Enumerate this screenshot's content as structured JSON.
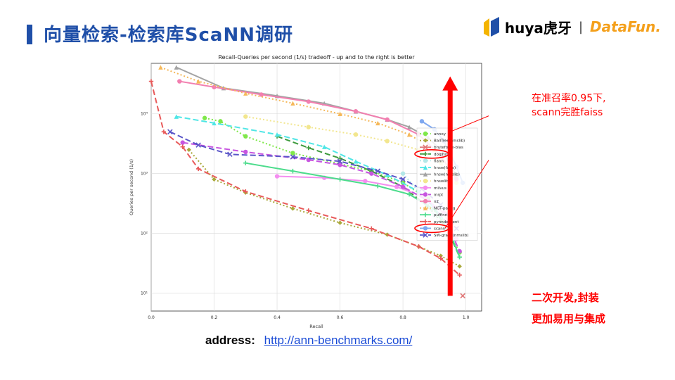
{
  "slide": {
    "title": "向量检索-检索库ScaNN调研",
    "logo_huya": "huya虎牙",
    "logo_sep": "|",
    "logo_datafun": "DataFun.",
    "note1_line1": "在准召率0.95下,",
    "note1_line2": "scann完胜faiss",
    "note2_line1": "二次开发,封装",
    "note2_line2": "更加易用与集成",
    "address_label": "address:",
    "address_url": "http://ann-benchmarks.com/",
    "accent_color": "#ff0000",
    "title_color": "#1f4fa8"
  },
  "chart_data": {
    "type": "line",
    "title": "Recall-Queries per second (1/s) tradeoff - up and to the right is better",
    "xlabel": "Recall",
    "ylabel": "Queries per second (1/s)",
    "xscale": "linear",
    "yscale": "log",
    "xlim": [
      0.0,
      1.05
    ],
    "ylim": [
      5,
      70000
    ],
    "xticks": [
      "0.0",
      "0.2",
      "0.4",
      "0.6",
      "0.8",
      "1.0"
    ],
    "yticks": [
      "10¹",
      "10²",
      "10³",
      "10⁴"
    ],
    "grid": true,
    "legend_position": "center-right",
    "series": [
      {
        "name": "annoy",
        "color": "#7fe84a",
        "dash": "2,3",
        "marker": "circle",
        "points": [
          [
            0.17,
            8500
          ],
          [
            0.22,
            7500
          ],
          [
            0.3,
            4200
          ],
          [
            0.45,
            2200
          ],
          [
            0.6,
            1450
          ],
          [
            0.7,
            1100
          ],
          [
            0.8,
            700
          ],
          [
            0.88,
            380
          ],
          [
            0.93,
            150
          ],
          [
            0.98,
            48
          ]
        ]
      },
      {
        "name": "BallTree(nmslib)",
        "color": "#a9a83a",
        "dash": "2,3",
        "marker": "diamond",
        "points": [
          [
            0.12,
            2500
          ],
          [
            0.2,
            800
          ],
          [
            0.3,
            480
          ],
          [
            0.45,
            260
          ],
          [
            0.6,
            150
          ],
          [
            0.75,
            95
          ],
          [
            0.85,
            60
          ],
          [
            0.92,
            42
          ],
          [
            0.98,
            28
          ]
        ]
      },
      {
        "name": "bruteforce-blas",
        "color": "#e07878",
        "dash": "none",
        "marker": "x",
        "points": [
          [
            0.99,
            9
          ]
        ]
      },
      {
        "name": "dolphinn",
        "color": "#3e9a3e",
        "dash": "8,4",
        "marker": "plus",
        "points": [
          [
            0.4,
            4200
          ],
          [
            0.5,
            2700
          ],
          [
            0.6,
            1800
          ],
          [
            0.7,
            1100
          ],
          [
            0.8,
            600
          ],
          [
            0.88,
            280
          ],
          [
            0.94,
            120
          ],
          [
            0.98,
            40
          ]
        ]
      },
      {
        "name": "flann",
        "color": "#b3e8e8",
        "dash": "2,3",
        "marker": "circle",
        "points": [
          [
            0.8,
            1000
          ],
          [
            0.85,
            500
          ],
          [
            0.9,
            200
          ],
          [
            0.95,
            70
          ]
        ]
      },
      {
        "name": "hnsw(faiss)",
        "color": "#4fe6e6",
        "dash": "8,4",
        "marker": "triangle",
        "points": [
          [
            0.08,
            9000
          ],
          [
            0.2,
            7000
          ],
          [
            0.4,
            4500
          ],
          [
            0.55,
            2800
          ],
          [
            0.65,
            1600
          ],
          [
            0.75,
            950
          ],
          [
            0.85,
            500
          ],
          [
            0.92,
            200
          ],
          [
            0.96,
            80
          ]
        ]
      },
      {
        "name": "hnsw(nmslib)",
        "color": "#a3a3a3",
        "dash": "none",
        "marker": "triangle",
        "points": [
          [
            0.08,
            60000
          ],
          [
            0.23,
            27000
          ],
          [
            0.4,
            20000
          ],
          [
            0.55,
            15000
          ],
          [
            0.65,
            11000
          ],
          [
            0.75,
            8000
          ],
          [
            0.82,
            6000
          ],
          [
            0.88,
            4000
          ],
          [
            0.93,
            2200
          ],
          [
            0.97,
            900
          ]
        ]
      },
      {
        "name": "hnswlib",
        "color": "#f2e68e",
        "dash": "2,3",
        "marker": "circle",
        "points": [
          [
            0.3,
            9000
          ],
          [
            0.5,
            6000
          ],
          [
            0.65,
            4500
          ],
          [
            0.75,
            3500
          ],
          [
            0.85,
            2500
          ],
          [
            0.92,
            1500
          ],
          [
            0.97,
            700
          ]
        ]
      },
      {
        "name": "milvus",
        "color": "#f48ef0",
        "dash": "none",
        "marker": "circle",
        "points": [
          [
            0.4,
            900
          ],
          [
            0.55,
            850
          ],
          [
            0.68,
            750
          ],
          [
            0.78,
            600
          ],
          [
            0.86,
            420
          ],
          [
            0.93,
            220
          ],
          [
            0.97,
            80
          ]
        ]
      },
      {
        "name": "mrpt",
        "color": "#c755e0",
        "dash": "8,4",
        "marker": "circle",
        "points": [
          [
            0.1,
            3300
          ],
          [
            0.3,
            2300
          ],
          [
            0.5,
            1700
          ],
          [
            0.6,
            1400
          ],
          [
            0.7,
            1000
          ],
          [
            0.8,
            600
          ],
          [
            0.88,
            350
          ],
          [
            0.94,
            150
          ],
          [
            0.98,
            50
          ]
        ]
      },
      {
        "name": "n2",
        "color": "#f27fb0",
        "dash": "none",
        "marker": "circle",
        "points": [
          [
            0.09,
            35000
          ],
          [
            0.2,
            28000
          ],
          [
            0.35,
            21000
          ],
          [
            0.5,
            16000
          ],
          [
            0.65,
            11000
          ],
          [
            0.75,
            8000
          ],
          [
            0.85,
            4500
          ],
          [
            0.92,
            2000
          ],
          [
            0.97,
            800
          ]
        ]
      },
      {
        "name": "NGT-panng",
        "color": "#f5b85a",
        "dash": "2,3",
        "marker": "triangle",
        "points": [
          [
            0.03,
            60000
          ],
          [
            0.15,
            35000
          ],
          [
            0.3,
            22000
          ],
          [
            0.45,
            15000
          ],
          [
            0.6,
            10000
          ],
          [
            0.72,
            7000
          ],
          [
            0.82,
            4500
          ],
          [
            0.9,
            2500
          ],
          [
            0.96,
            1000
          ]
        ]
      },
      {
        "name": "puffinn",
        "color": "#4cdc8c",
        "dash": "none",
        "marker": "plus",
        "points": [
          [
            0.3,
            1500
          ],
          [
            0.45,
            1100
          ],
          [
            0.6,
            800
          ],
          [
            0.72,
            620
          ],
          [
            0.82,
            450
          ],
          [
            0.9,
            250
          ],
          [
            0.95,
            100
          ],
          [
            0.98,
            40
          ]
        ]
      },
      {
        "name": "pynndescent",
        "color": "#e85a5a",
        "dash": "8,4",
        "marker": "plus",
        "points": [
          [
            0.0,
            35000
          ],
          [
            0.04,
            5000
          ],
          [
            0.1,
            2800
          ],
          [
            0.15,
            1200
          ],
          [
            0.3,
            500
          ],
          [
            0.5,
            240
          ],
          [
            0.7,
            120
          ],
          [
            0.85,
            60
          ],
          [
            0.92,
            38
          ],
          [
            0.98,
            20
          ]
        ]
      },
      {
        "name": "scann",
        "color": "#7fa8f0",
        "dash": "none",
        "marker": "circle",
        "points": [
          [
            0.86,
            7500
          ],
          [
            0.9,
            5500
          ],
          [
            0.93,
            3500
          ],
          [
            0.95,
            2200
          ],
          [
            0.97,
            1300
          ],
          [
            0.99,
            700
          ]
        ]
      },
      {
        "name": "SW-graph(nmslib)",
        "color": "#5a55c8",
        "dash": "8,4",
        "marker": "x",
        "points": [
          [
            0.06,
            5000
          ],
          [
            0.15,
            3000
          ],
          [
            0.25,
            2100
          ],
          [
            0.45,
            1900
          ],
          [
            0.6,
            1600
          ],
          [
            0.72,
            1100
          ],
          [
            0.8,
            800
          ],
          [
            0.86,
            550
          ],
          [
            0.92,
            300
          ],
          [
            0.97,
            120
          ]
        ]
      }
    ],
    "annotations": [
      {
        "type": "vertical-arrow",
        "x": 0.95,
        "from_y": 9,
        "to_y": 40000,
        "color": "#ff0000"
      },
      {
        "type": "ellipse-highlight",
        "legend_entry": "dolphinn",
        "color": "#ff0000"
      },
      {
        "type": "ellipse-highlight",
        "legend_entry": "scann",
        "color": "#ff0000"
      }
    ]
  }
}
